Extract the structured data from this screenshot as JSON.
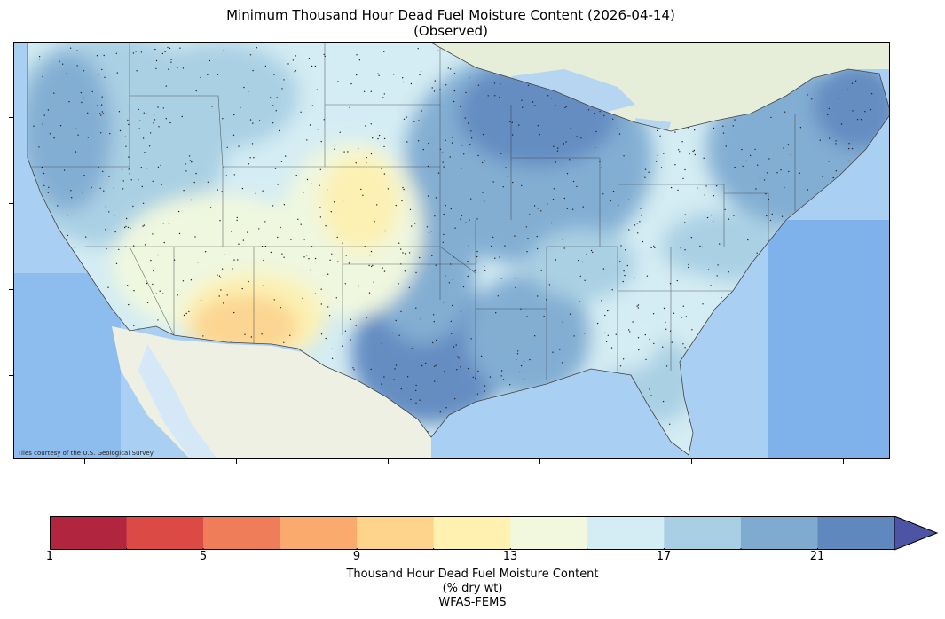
{
  "title": {
    "line1": "Minimum Thousand Hour Dead Fuel Moisture Content (2026-04-14)",
    "line2": "(Observed)"
  },
  "map": {
    "attribution": "Tiles courtesy of the U.S. Geological Survey",
    "basemap": "USGS topographic tiles",
    "region": "Contiguous United States",
    "point_marker_icon": "dot-marker"
  },
  "colorbar": {
    "ticks": [
      "1",
      "5",
      "9",
      "13",
      "17",
      "21"
    ],
    "label_line1": "Thousand Hour Dead Fuel Moisture Content",
    "label_line2": "(% dry wt)",
    "label_line3": "WFAS-FEMS",
    "extend": "max",
    "colors": [
      "#b2253f",
      "#dc4a45",
      "#f07d5a",
      "#fbaa6d",
      "#fed48c",
      "#fff2b0",
      "#f1f8de",
      "#d4ecf3",
      "#a8cfe3",
      "#7fabd1",
      "#5f88bf",
      "#4d54a4"
    ]
  }
}
